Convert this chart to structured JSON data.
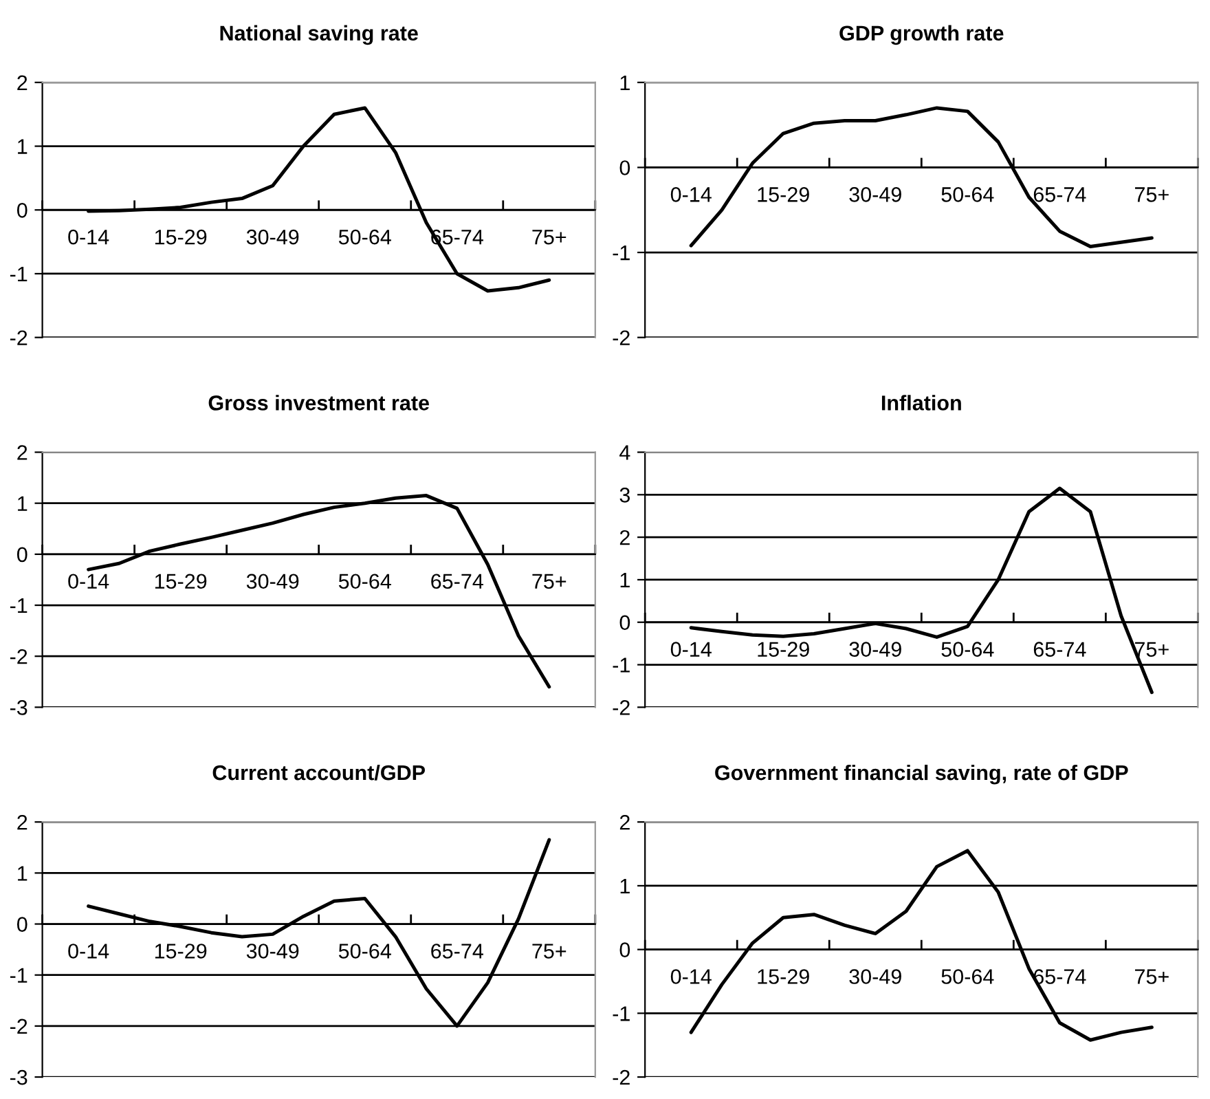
{
  "chart_data": [
    {
      "type": "line",
      "title": "National saving rate",
      "categories": [
        "0-14",
        null,
        null,
        "15-29",
        null,
        null,
        "30-49",
        null,
        null,
        "50-64",
        null,
        null,
        "65-74",
        null,
        null,
        "75+"
      ],
      "values": [
        -0.02,
        -0.01,
        0.01,
        0.04,
        0.12,
        0.18,
        0.38,
        1.0,
        1.5,
        1.6,
        0.9,
        -0.2,
        -1.0,
        -1.27,
        -1.22,
        -1.1
      ],
      "color": "#000000",
      "ylim": [
        -2,
        2
      ],
      "yticks": [
        -2,
        -1,
        0,
        1,
        2
      ],
      "grid": "y"
    },
    {
      "type": "line",
      "title": "GDP growth rate",
      "categories": [
        "0-14",
        null,
        null,
        "15-29",
        null,
        null,
        "30-49",
        null,
        null,
        "50-64",
        null,
        null,
        "65-74",
        null,
        null,
        "75+"
      ],
      "values": [
        -0.92,
        -0.5,
        0.05,
        0.4,
        0.52,
        0.55,
        0.55,
        0.62,
        0.7,
        0.66,
        0.3,
        -0.35,
        -0.75,
        -0.93,
        -0.88,
        -0.83
      ],
      "color": "#000000",
      "ylim": [
        -2,
        1
      ],
      "yticks": [
        -2,
        -1,
        0,
        1
      ],
      "grid": "y"
    },
    {
      "type": "line",
      "title": "Gross investment rate",
      "categories": [
        "0-14",
        null,
        null,
        "15-29",
        null,
        null,
        "30-49",
        null,
        null,
        "50-64",
        null,
        null,
        "65-74",
        null,
        null,
        "75+"
      ],
      "values": [
        -0.3,
        -0.18,
        0.06,
        0.2,
        0.33,
        0.47,
        0.61,
        0.78,
        0.92,
        1.0,
        1.1,
        1.15,
        0.9,
        -0.2,
        -1.6,
        -2.6
      ],
      "color": "#000000",
      "ylim": [
        -3,
        2
      ],
      "yticks": [
        -3,
        -2,
        -1,
        0,
        1,
        2
      ],
      "grid": "y"
    },
    {
      "type": "line",
      "title": "Inflation",
      "categories": [
        "0-14",
        null,
        null,
        "15-29",
        null,
        null,
        "30-49",
        null,
        null,
        "50-64",
        null,
        null,
        "65-74",
        null,
        null,
        "75+"
      ],
      "values": [
        -0.13,
        -0.22,
        -0.3,
        -0.33,
        -0.27,
        -0.15,
        -0.03,
        -0.15,
        -0.35,
        -0.1,
        1.0,
        2.6,
        3.15,
        2.6,
        0.15,
        -1.65
      ],
      "color": "#000000",
      "ylim": [
        -2,
        4
      ],
      "yticks": [
        -2,
        -1,
        0,
        1,
        2,
        3,
        4
      ],
      "grid": "y"
    },
    {
      "type": "line",
      "title": "Current account/GDP",
      "categories": [
        "0-14",
        null,
        null,
        "15-29",
        null,
        null,
        "30-49",
        null,
        null,
        "50-64",
        null,
        null,
        "65-74",
        null,
        null,
        "75+"
      ],
      "values": [
        0.35,
        0.2,
        0.05,
        -0.05,
        -0.17,
        -0.25,
        -0.2,
        0.15,
        0.45,
        0.5,
        -0.25,
        -1.27,
        -2.0,
        -1.15,
        0.1,
        1.65
      ],
      "color": "#000000",
      "ylim": [
        -3,
        2
      ],
      "yticks": [
        -3,
        -2,
        -1,
        0,
        1,
        2
      ],
      "grid": "y"
    },
    {
      "type": "line",
      "title": "Government financial saving, rate of GDP",
      "categories": [
        "0-14",
        null,
        null,
        "15-29",
        null,
        null,
        "30-49",
        null,
        null,
        "50-64",
        null,
        null,
        "65-74",
        null,
        null,
        "75+"
      ],
      "values": [
        -1.3,
        -0.55,
        0.1,
        0.5,
        0.55,
        0.38,
        0.25,
        0.6,
        1.3,
        1.55,
        0.9,
        -0.3,
        -1.15,
        -1.42,
        -1.3,
        -1.22
      ],
      "color": "#000000",
      "ylim": [
        -2,
        2
      ],
      "yticks": [
        -2,
        -1,
        0,
        1,
        2
      ],
      "grid": "y"
    }
  ]
}
